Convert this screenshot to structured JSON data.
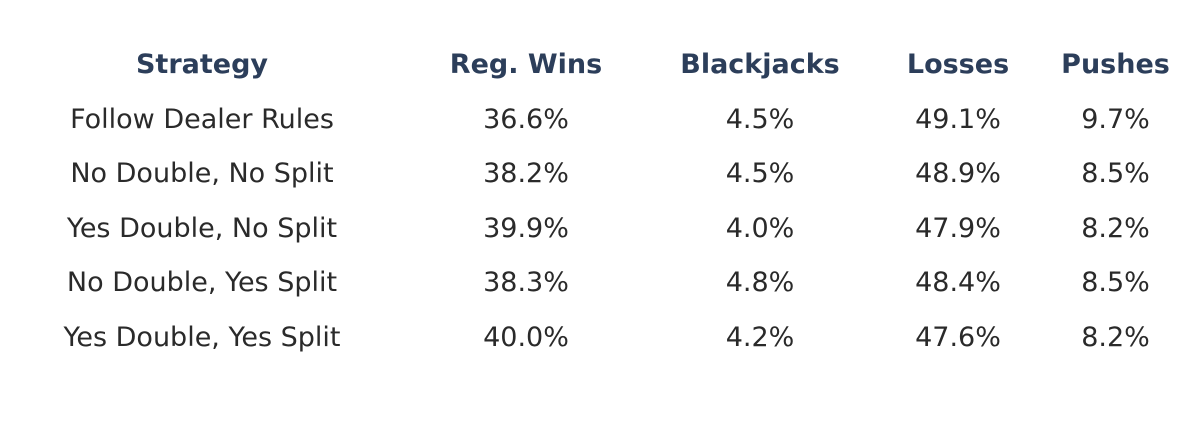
{
  "table": {
    "headers": [
      "Strategy",
      "Reg. Wins",
      "Blackjacks",
      "Losses",
      "Pushes"
    ],
    "rows": [
      [
        "Follow Dealer Rules",
        "36.6%",
        "4.5%",
        "49.1%",
        "9.7%"
      ],
      [
        "No Double, No Split",
        "38.2%",
        "4.5%",
        "48.9%",
        "8.5%"
      ],
      [
        "Yes Double, No Split",
        "39.9%",
        "4.0%",
        "47.9%",
        "8.2%"
      ],
      [
        "No Double, Yes Split",
        "38.3%",
        "4.8%",
        "48.4%",
        "8.5%"
      ],
      [
        "Yes Double, Yes Split",
        "40.0%",
        "4.2%",
        "47.6%",
        "8.2%"
      ]
    ]
  },
  "colors": {
    "header_text": "#2c3e5a",
    "body_text": "#2a2a2a",
    "background": "#ffffff"
  }
}
